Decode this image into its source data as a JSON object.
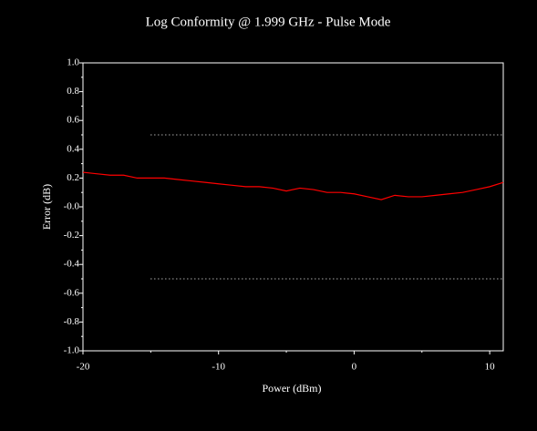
{
  "chart_data": {
    "type": "line",
    "title": "Log Conformity @ 1.999 GHz - Pulse Mode",
    "x_label": "Power (dBm)",
    "y_label": "Error (dB)",
    "x": [
      -20,
      -19,
      -18,
      -17,
      -16,
      -15,
      -14,
      -13,
      -12,
      -11,
      -10,
      -9,
      -8,
      -7,
      -6,
      -5,
      -4,
      -3,
      -2,
      -1,
      0,
      1,
      2,
      3,
      4,
      5,
      6,
      7,
      8,
      9,
      10,
      11
    ],
    "series": [
      {
        "color": "#ff0000",
        "values": [
          0.24,
          0.23,
          0.22,
          0.22,
          0.2,
          0.2,
          0.2,
          0.19,
          0.18,
          0.17,
          0.16,
          0.15,
          0.14,
          0.14,
          0.13,
          0.11,
          0.13,
          0.12,
          0.1,
          0.1,
          0.09,
          0.07,
          0.05,
          0.08,
          0.07,
          0.07,
          0.08,
          0.09,
          0.1,
          0.12,
          0.14,
          0.17
        ]
      }
    ],
    "limits": [
      {
        "color": "#ffffff",
        "x": [
          -15,
          11
        ],
        "values": [
          0.5,
          0.5
        ]
      },
      {
        "color": "#ffffff",
        "x": [
          -15,
          11
        ],
        "values": [
          -0.5,
          -0.5
        ]
      }
    ],
    "xlim": [
      -20,
      11
    ],
    "xticks": [
      -20,
      -10,
      0,
      10
    ],
    "ylim": [
      -1,
      1
    ],
    "yticks": [
      {
        "value": -1,
        "label": "-1.0"
      },
      {
        "value": -0.8,
        "label": "-0.8"
      },
      {
        "value": -0.6,
        "label": "-0.6"
      },
      {
        "value": -0.4,
        "label": "-0.4"
      },
      {
        "value": -0.2,
        "label": "-0.2"
      },
      {
        "value": 0,
        "label": "-0.0"
      },
      {
        "value": 0.2,
        "label": "0.2"
      },
      {
        "value": 0.4,
        "label": "0.4"
      },
      {
        "value": 0.6,
        "label": "0.6"
      },
      {
        "value": 0.8,
        "label": "0.8"
      },
      {
        "value": 1,
        "label": "1.0"
      }
    ]
  }
}
